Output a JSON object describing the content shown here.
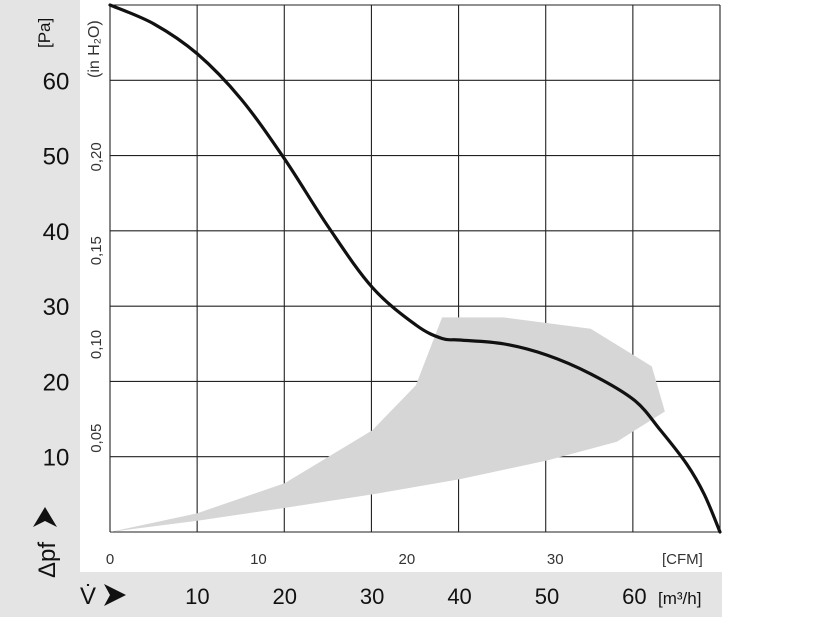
{
  "chart_data": {
    "type": "line",
    "x_axes": {
      "primary": {
        "unit_label": "[m³/h]",
        "symbol": "V̇",
        "ticks": [
          10,
          20,
          30,
          40,
          50,
          60
        ],
        "range": [
          0,
          69.8
        ]
      },
      "secondary": {
        "unit_label": "[CFM]",
        "ticks": [
          0,
          10,
          20,
          30
        ],
        "range": [
          0,
          41.1
        ]
      }
    },
    "y_axes": {
      "primary": {
        "unit_label": "[Pa]",
        "symbol": "Δpf",
        "ticks": [
          10,
          20,
          30,
          40,
          50,
          60
        ],
        "range": [
          0,
          70
        ]
      },
      "secondary": {
        "unit_label": "(in H₂O)",
        "ticks": [
          "0,05",
          "0,10",
          "0,15",
          "0,20"
        ],
        "tick_values": [
          0.05,
          0.1,
          0.15,
          0.2
        ]
      }
    },
    "grid": true,
    "series": [
      {
        "x": [
          0,
          5,
          10,
          15,
          20,
          25,
          30,
          35,
          38,
          40,
          45,
          50,
          55,
          60,
          63,
          66,
          68,
          69.8
        ],
        "y": [
          70,
          67.5,
          63.5,
          57.5,
          49.5,
          40.5,
          32.5,
          27.5,
          25.7,
          25.5,
          25,
          23.5,
          21,
          17.5,
          13.5,
          9,
          5,
          0
        ]
      }
    ],
    "operating_region": {
      "upper_x": [
        0,
        10,
        20,
        30,
        35,
        38,
        45,
        55,
        62,
        63.5
      ],
      "upper_y": [
        0,
        2.5,
        6.5,
        13.5,
        19.5,
        28.5,
        28.5,
        27,
        22,
        16
      ],
      "lower_x": [
        63.5,
        58,
        50,
        40,
        30,
        20,
        10,
        0
      ],
      "lower_y": [
        16,
        12,
        9.5,
        7,
        5,
        3.2,
        1.5,
        0
      ]
    }
  }
}
